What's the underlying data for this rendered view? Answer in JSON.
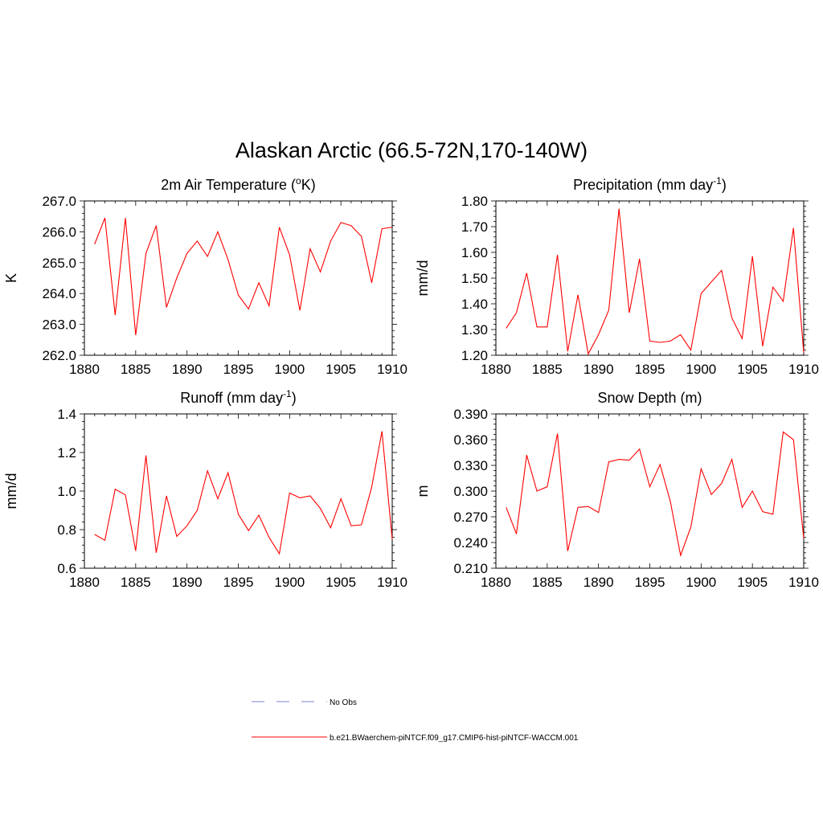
{
  "title": "Alaskan Arctic (66.5-72N,170-140W)",
  "colors": {
    "model_line": "#ff0000",
    "obs_line": "#9999dd",
    "axis": "#000000"
  },
  "legend": {
    "entries": [
      {
        "label": "No Obs",
        "style": "dashed",
        "color": "#9999dd"
      },
      {
        "label": "b.e21.BWaerchem-piNTCF.f09_g17.CMIP6-hist-piNTCF-WACCM.001",
        "style": "solid",
        "color": "#ff0000"
      }
    ]
  },
  "chart_data": [
    {
      "type": "line",
      "title": "2m Air Temperature (",
      "title_sup": "o",
      "title_after": "K)",
      "ylabel": "K",
      "xlim": [
        1880,
        1910
      ],
      "ylim": [
        262.0,
        267.0
      ],
      "xticks": [
        1880,
        1885,
        1890,
        1895,
        1900,
        1905,
        1910
      ],
      "xtick_labels": [
        "1880",
        "1885",
        "1890",
        "1895",
        "1900",
        "1905",
        "1910"
      ],
      "yticks": [
        262.0,
        263.0,
        264.0,
        265.0,
        266.0,
        267.0
      ],
      "ytick_labels": [
        "262.0",
        "263.0",
        "264.0",
        "265.0",
        "266.0",
        "267.0"
      ],
      "grid": false,
      "series": [
        {
          "x": [
            1881,
            1882,
            1883,
            1884,
            1885,
            1886,
            1887,
            1888,
            1889,
            1890,
            1891,
            1892,
            1893,
            1894,
            1895,
            1896,
            1897,
            1898,
            1899,
            1900,
            1901,
            1902,
            1903,
            1904,
            1905,
            1906,
            1907,
            1908,
            1909,
            1910
          ],
          "y": [
            265.6,
            266.45,
            263.3,
            266.45,
            262.65,
            265.3,
            266.2,
            263.55,
            264.5,
            265.3,
            265.7,
            265.2,
            266.0,
            265.1,
            263.95,
            263.5,
            264.35,
            263.6,
            266.15,
            265.25,
            263.45,
            265.45,
            264.7,
            265.7,
            266.3,
            266.2,
            265.85,
            264.35,
            266.1,
            266.15
          ]
        }
      ]
    },
    {
      "type": "line",
      "title": "Precipitation (mm day",
      "title_sup": "-1",
      "title_after": ")",
      "ylabel": "mm/d",
      "xlim": [
        1880,
        1910
      ],
      "ylim": [
        1.2,
        1.8
      ],
      "xticks": [
        1880,
        1885,
        1890,
        1895,
        1900,
        1905,
        1910
      ],
      "xtick_labels": [
        "1880",
        "1885",
        "1890",
        "1895",
        "1900",
        "1905",
        "1910"
      ],
      "yticks": [
        1.2,
        1.3,
        1.4,
        1.5,
        1.6,
        1.7,
        1.8
      ],
      "ytick_labels": [
        "1.20",
        "1.30",
        "1.40",
        "1.50",
        "1.60",
        "1.70",
        "1.80"
      ],
      "grid": false,
      "series": [
        {
          "x": [
            1881,
            1882,
            1883,
            1884,
            1885,
            1886,
            1887,
            1888,
            1889,
            1890,
            1891,
            1892,
            1893,
            1894,
            1895,
            1896,
            1897,
            1898,
            1899,
            1900,
            1901,
            1902,
            1903,
            1904,
            1905,
            1906,
            1907,
            1908,
            1909,
            1910
          ],
          "y": [
            1.305,
            1.365,
            1.52,
            1.31,
            1.31,
            1.59,
            1.215,
            1.435,
            1.205,
            1.28,
            1.375,
            1.77,
            1.365,
            1.575,
            1.255,
            1.25,
            1.255,
            1.28,
            1.22,
            1.44,
            1.485,
            1.53,
            1.345,
            1.265,
            1.585,
            1.235,
            1.465,
            1.41,
            1.695,
            1.21
          ]
        }
      ]
    },
    {
      "type": "line",
      "title": "Runoff (mm day",
      "title_sup": "-1",
      "title_after": ")",
      "ylabel": "mm/d",
      "xlim": [
        1880,
        1910
      ],
      "ylim": [
        0.6,
        1.4
      ],
      "xticks": [
        1880,
        1885,
        1890,
        1895,
        1900,
        1905,
        1910
      ],
      "xtick_labels": [
        "1880",
        "1885",
        "1890",
        "1895",
        "1900",
        "1905",
        "1910"
      ],
      "yticks": [
        0.6,
        0.8,
        1.0,
        1.2,
        1.4
      ],
      "ytick_labels": [
        "0.6",
        "0.8",
        "1.0",
        "1.2",
        "1.4"
      ],
      "grid": false,
      "series": [
        {
          "x": [
            1881,
            1882,
            1883,
            1884,
            1885,
            1886,
            1887,
            1888,
            1889,
            1890,
            1891,
            1892,
            1893,
            1894,
            1895,
            1896,
            1897,
            1898,
            1899,
            1900,
            1901,
            1902,
            1903,
            1904,
            1905,
            1906,
            1907,
            1908,
            1909,
            1910
          ],
          "y": [
            0.775,
            0.745,
            1.01,
            0.98,
            0.69,
            1.185,
            0.68,
            0.975,
            0.765,
            0.82,
            0.9,
            1.105,
            0.96,
            1.095,
            0.88,
            0.795,
            0.875,
            0.76,
            0.675,
            0.99,
            0.965,
            0.975,
            0.91,
            0.81,
            0.96,
            0.82,
            0.825,
            1.02,
            1.31,
            0.75
          ]
        }
      ]
    },
    {
      "type": "line",
      "title": "Snow Depth (m)",
      "title_sup": "",
      "title_after": "",
      "ylabel": "m",
      "xlim": [
        1880,
        1910
      ],
      "ylim": [
        0.21,
        0.39
      ],
      "xticks": [
        1880,
        1885,
        1890,
        1895,
        1900,
        1905,
        1910
      ],
      "xtick_labels": [
        "1880",
        "1885",
        "1890",
        "1895",
        "1900",
        "1905",
        "1910"
      ],
      "yticks": [
        0.21,
        0.24,
        0.27,
        0.3,
        0.33,
        0.36,
        0.39
      ],
      "ytick_labels": [
        "0.210",
        "0.240",
        "0.270",
        "0.300",
        "0.330",
        "0.360",
        "0.390"
      ],
      "grid": false,
      "series": [
        {
          "x": [
            1881,
            1882,
            1883,
            1884,
            1885,
            1886,
            1887,
            1888,
            1889,
            1890,
            1891,
            1892,
            1893,
            1894,
            1895,
            1896,
            1897,
            1898,
            1899,
            1900,
            1901,
            1902,
            1903,
            1904,
            1905,
            1906,
            1907,
            1908,
            1909,
            1910
          ],
          "y": [
            0.281,
            0.25,
            0.342,
            0.3,
            0.305,
            0.367,
            0.23,
            0.281,
            0.282,
            0.275,
            0.334,
            0.337,
            0.336,
            0.349,
            0.305,
            0.331,
            0.288,
            0.225,
            0.258,
            0.326,
            0.296,
            0.309,
            0.337,
            0.281,
            0.3,
            0.276,
            0.273,
            0.369,
            0.36,
            0.245
          ]
        }
      ]
    }
  ]
}
